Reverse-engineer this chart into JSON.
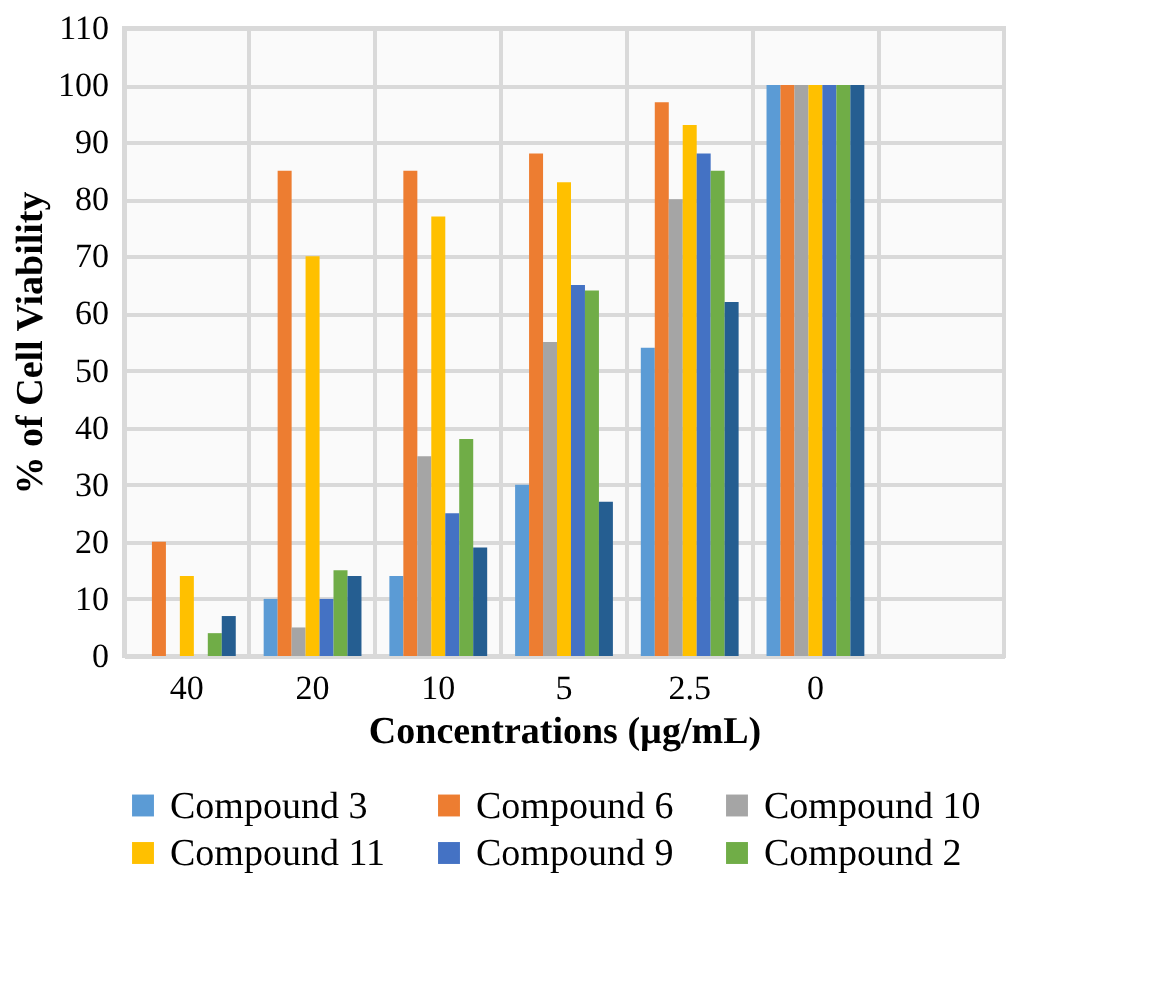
{
  "chart_data": {
    "type": "bar",
    "xlabel": "Concentrations (µg/mL)",
    "ylabel": "% of Cell Viability",
    "categories": [
      "40",
      "20",
      "10",
      "5",
      "2.5",
      "0",
      null
    ],
    "series": [
      {
        "name": "Compound 3",
        "color": "#5b9bd5",
        "values": [
          0,
          10,
          14,
          30,
          54,
          100,
          null
        ]
      },
      {
        "name": "Compound 6",
        "color": "#ed7d31",
        "values": [
          20,
          85,
          85,
          88,
          97,
          100,
          null
        ]
      },
      {
        "name": "Compound 10",
        "color": "#a5a5a5",
        "values": [
          0,
          5,
          35,
          55,
          80,
          100,
          null
        ]
      },
      {
        "name": "Compound 11",
        "color": "#ffc000",
        "values": [
          14,
          70,
          77,
          83,
          93,
          100,
          null
        ]
      },
      {
        "name": "Compound 9",
        "color": "#4472c4",
        "values": [
          0,
          10,
          25,
          65,
          88,
          100,
          null
        ]
      },
      {
        "name": "Compound 2",
        "color": "#70ad47",
        "values": [
          4,
          15,
          38,
          64,
          85,
          100,
          null
        ]
      },
      {
        "color": "#255e91",
        "values": [
          7,
          14,
          19,
          27,
          62,
          100,
          null
        ]
      }
    ],
    "ylim": [
      0,
      110
    ],
    "yticks": [
      0,
      10,
      20,
      30,
      40,
      50,
      60,
      70,
      80,
      90,
      100,
      110
    ],
    "grid": true,
    "legend": "bottom"
  }
}
